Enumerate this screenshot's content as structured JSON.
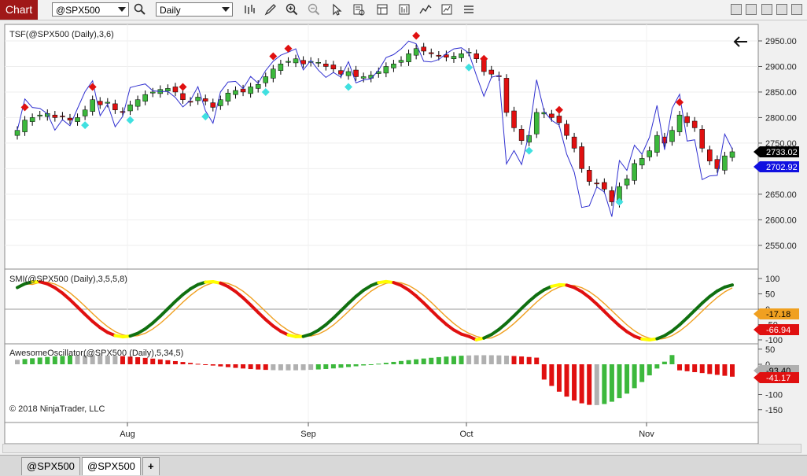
{
  "app": {
    "tab_label": "Chart"
  },
  "toolbar": {
    "instrument": "@SPX500",
    "interval": "Daily",
    "icons": [
      "search-icon",
      "bar-type-icon",
      "draw-pencil-icon",
      "zoom-in-icon",
      "zoom-out-icon",
      "pointer-icon",
      "data-box-icon",
      "template-icon",
      "properties-icon",
      "indicators-icon",
      "strategies-icon",
      "more-icon"
    ]
  },
  "window": {
    "buttons": [
      "minimize-button",
      "restore-button",
      "maximize-button",
      "close-button"
    ]
  },
  "panels": {
    "price": {
      "title": "TSF(@SPX500 (Daily),3,6)",
      "last_price": "2733.02",
      "tsf_value": "2702.92"
    },
    "smi": {
      "title": "SMI(@SPX500 (Daily),3,5,5,8)",
      "value1": "-17.18",
      "value2": "-66.94"
    },
    "ao": {
      "title": "AwesomeOscillator(@SPX500 (Daily),5,34,5)",
      "value1": "-93.40",
      "value2": "-41.17"
    }
  },
  "copyright": "© 2018 NinjaTrader, LLC",
  "chart_data": {
    "type": "candlestick",
    "price_axis": {
      "ticks": [
        "2950.00",
        "2900.00",
        "2850.00",
        "2800.00",
        "2750.00",
        "2700.00",
        "2650.00",
        "2600.00",
        "2550.00"
      ]
    },
    "smi_axis": {
      "ticks": [
        "100",
        "50",
        "0",
        "-50",
        "-100"
      ]
    },
    "ao_axis": {
      "ticks": [
        "50",
        "0",
        "-50",
        "-100",
        "-150"
      ]
    },
    "x_axis": {
      "labels": [
        "Aug",
        "Sep",
        "Oct",
        "Nov"
      ]
    },
    "colors": {
      "up": "#3cb83c",
      "down": "#e01010",
      "tsf": "#3030d0",
      "buy": "#40e0e0",
      "sell": "#e01010",
      "smi_up": "#107010",
      "smi_down": "#e01010",
      "smi_neutral": "#ffff00",
      "smi_signal": "#f0a020",
      "ao_gray": "#b0b0b0"
    }
  },
  "instrument_tabs": [
    {
      "label": "@SPX500",
      "active": false
    },
    {
      "label": "@SPX500",
      "active": true
    }
  ],
  "add_tab_label": "+"
}
